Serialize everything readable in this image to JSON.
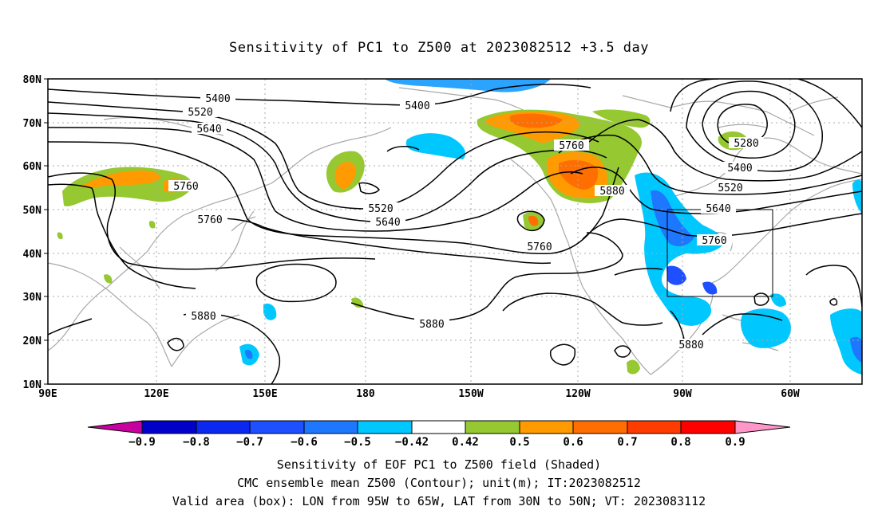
{
  "title": "Sensitivity of PC1 to Z500 at 2023082512 +3.5 day",
  "map": {
    "lon_range": [
      "90E",
      "45W"
    ],
    "lat_range": [
      "10N",
      "80N"
    ],
    "lat_labels": [
      "10N",
      "20N",
      "30N",
      "40N",
      "50N",
      "60N",
      "70N",
      "80N"
    ],
    "lon_labels": [
      "90E",
      "120E",
      "150E",
      "180",
      "150W",
      "120W",
      "90W",
      "60W"
    ],
    "valid_box": {
      "lon": [
        "95W",
        "65W"
      ],
      "lat": [
        "30N",
        "50N"
      ]
    },
    "contour_labels": [
      {
        "id": "c1",
        "text": "5400"
      },
      {
        "id": "c2",
        "text": "5520"
      },
      {
        "id": "c3",
        "text": "5640"
      },
      {
        "id": "c4",
        "text": "5400"
      },
      {
        "id": "c5",
        "text": "5760"
      },
      {
        "id": "c6",
        "text": "5760"
      },
      {
        "id": "c7",
        "text": "5520"
      },
      {
        "id": "c8",
        "text": "5640"
      },
      {
        "id": "c9",
        "text": "5760"
      },
      {
        "id": "c10",
        "text": "5880"
      },
      {
        "id": "c11",
        "text": "5880"
      },
      {
        "id": "c12",
        "text": "5760"
      },
      {
        "id": "c13",
        "text": "5880"
      },
      {
        "id": "c14",
        "text": "5280"
      },
      {
        "id": "c15",
        "text": "5400"
      },
      {
        "id": "c16",
        "text": "5520"
      },
      {
        "id": "c17",
        "text": "5640"
      },
      {
        "id": "c18",
        "text": "5760"
      },
      {
        "id": "c19",
        "text": "5880"
      }
    ]
  },
  "colorbar": {
    "labels": [
      "−0.9",
      "−0.8",
      "−0.7",
      "−0.6",
      "−0.5",
      "−0.42",
      "0.42",
      "0.5",
      "0.6",
      "0.7",
      "0.8",
      "0.9"
    ],
    "colors": [
      "#c800a0",
      "#0000c8",
      "#0a28f0",
      "#1e50ff",
      "#1e78ff",
      "#2aa4ff",
      "#00c8ff",
      "#ffffff",
      "#96c832",
      "#ff9b00",
      "#ff6e00",
      "#ff3c00",
      "#ff0000",
      "#ff96c8"
    ]
  },
  "captions": {
    "line1": "Sensitivity of EOF PC1 to Z500 field (Shaded)",
    "line2": "CMC ensemble mean Z500 (Contour); unit(m); IT:2023082512",
    "line3": "Valid area (box): LON from 95W to 65W, LAT from 30N to 50N; VT: 2023083112"
  }
}
